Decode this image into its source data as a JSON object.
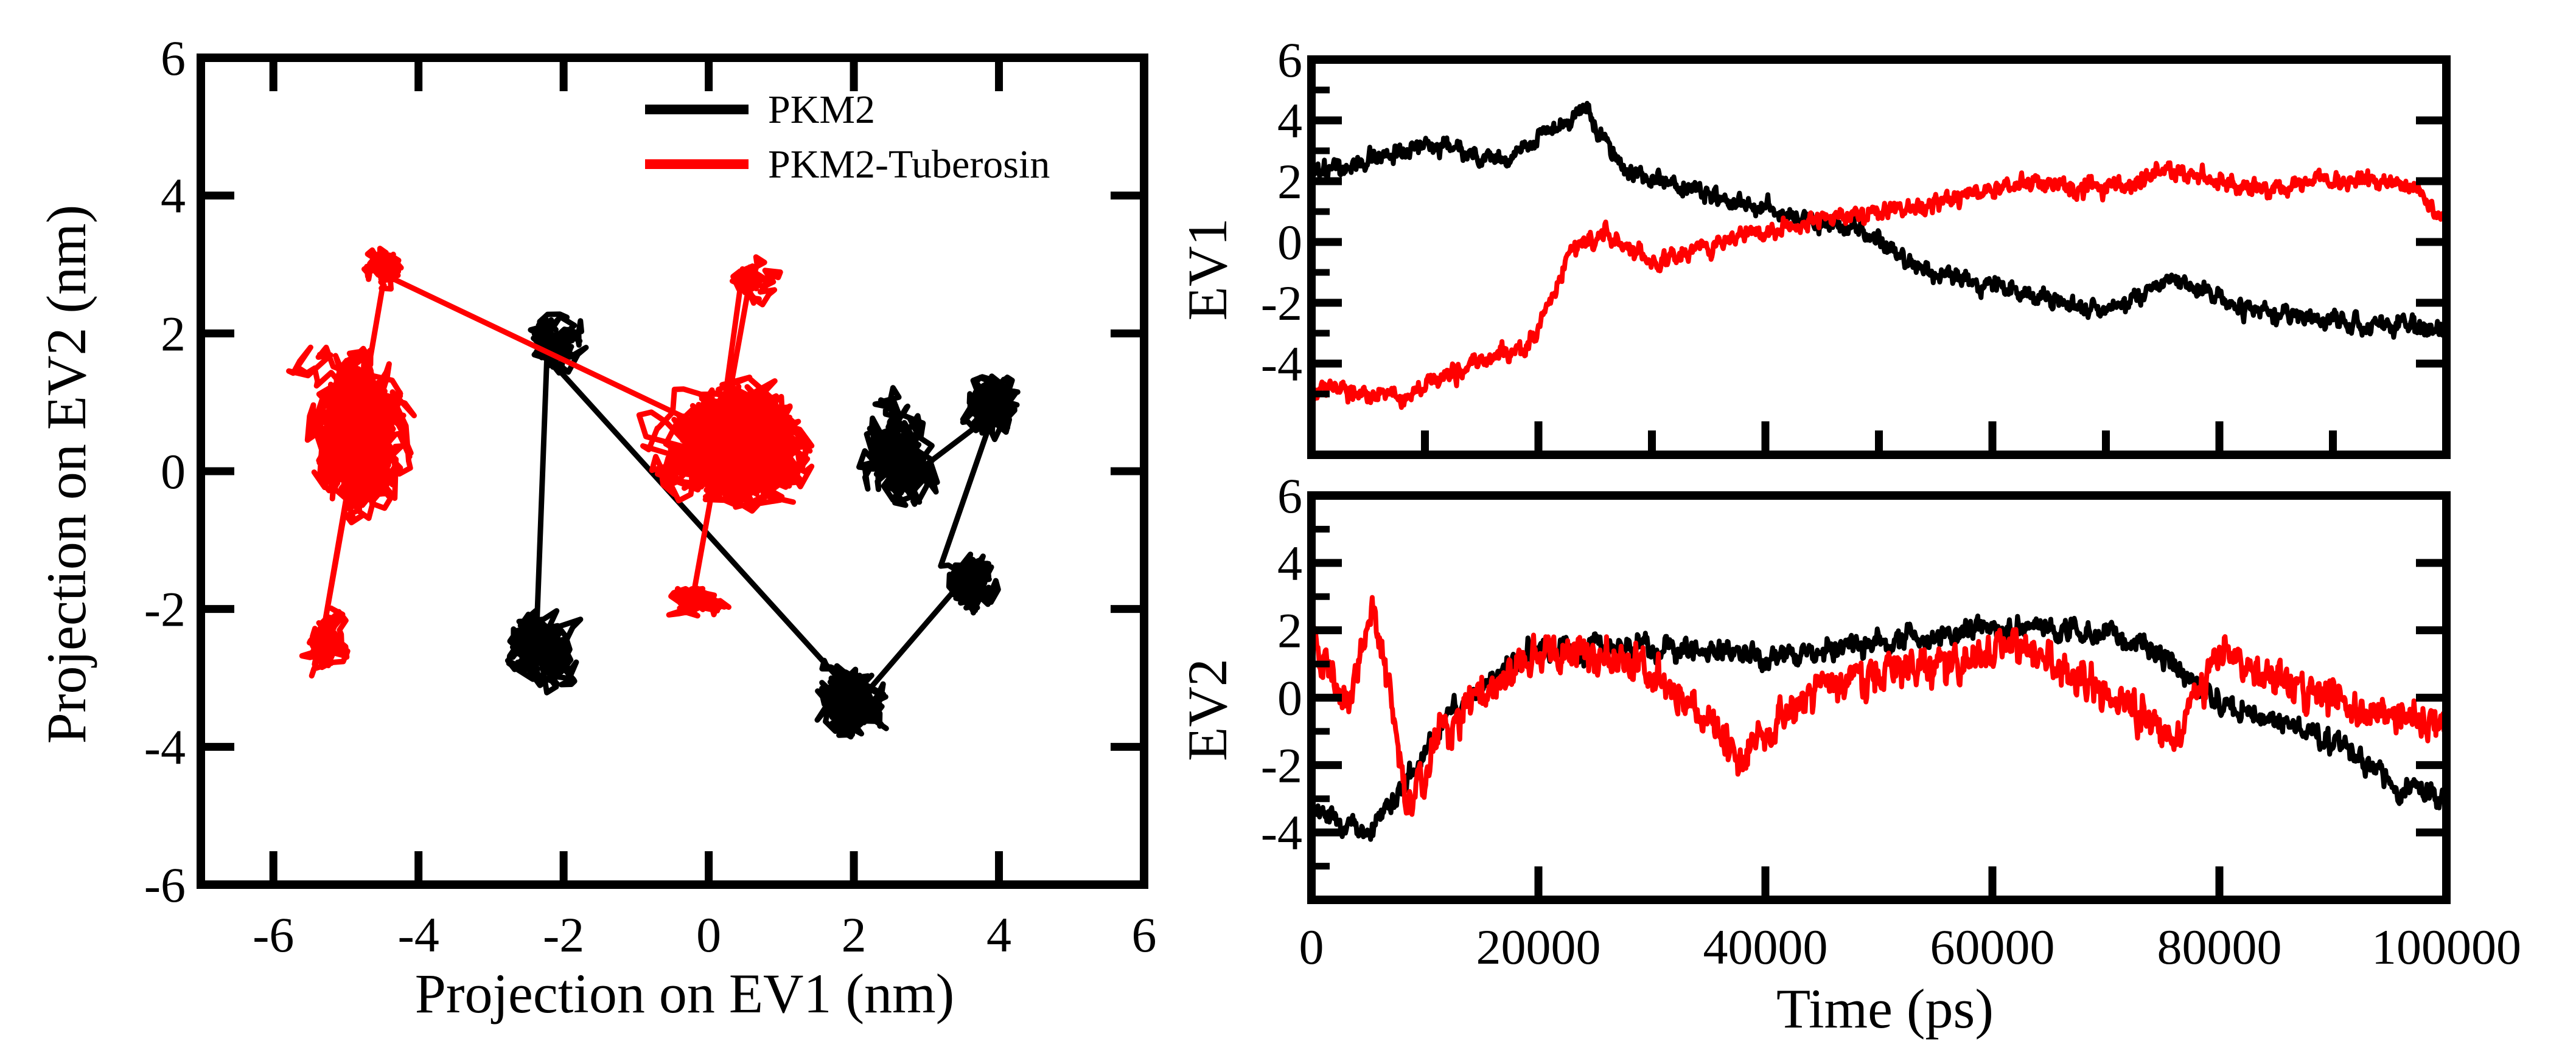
{
  "chart_data": [
    {
      "id": "scatter",
      "type": "line",
      "title": "",
      "xlabel": "Projection on EV1 (nm)",
      "ylabel": "Projection on EV2 (nm)",
      "xlim": [
        -7,
        6
      ],
      "ylim": [
        -6,
        6
      ],
      "xticks": [
        -6,
        -4,
        -2,
        0,
        2,
        4,
        6
      ],
      "yticks": [
        -6,
        -4,
        -2,
        0,
        2,
        4,
        6
      ],
      "legend_position": "top-right",
      "series": [
        {
          "name": "PKM2",
          "color": "#000000",
          "clusters": [
            {
              "center": [
                -2.3,
                -2.6
              ],
              "spread": [
                0.5,
                0.55
              ],
              "points": 320
            },
            {
              "center": [
                -2.1,
                1.9
              ],
              "spread": [
                0.45,
                0.5
              ],
              "points": 160
            },
            {
              "center": [
                2.0,
                -3.3
              ],
              "spread": [
                0.55,
                0.6
              ],
              "points": 420
            },
            {
              "center": [
                3.6,
                -1.6
              ],
              "spread": [
                0.45,
                0.55
              ],
              "points": 200
            },
            {
              "center": [
                3.9,
                1.0
              ],
              "spread": [
                0.5,
                0.55
              ],
              "points": 240
            },
            {
              "center": [
                2.6,
                0.2
              ],
              "spread": [
                0.6,
                0.8
              ],
              "points": 260
            }
          ]
        },
        {
          "name": "PKM2-Tuberosin",
          "color": "#ff0000",
          "clusters": [
            {
              "center": [
                -4.8,
                0.5
              ],
              "spread": [
                0.75,
                1.3
              ],
              "points": 900
            },
            {
              "center": [
                -5.3,
                -2.5
              ],
              "spread": [
                0.4,
                0.5
              ],
              "points": 160
            },
            {
              "center": [
                -4.5,
                3.0
              ],
              "spread": [
                0.4,
                0.35
              ],
              "points": 90
            },
            {
              "center": [
                0.4,
                0.4
              ],
              "spread": [
                1.05,
                0.95
              ],
              "points": 1300
            },
            {
              "center": [
                0.6,
                2.8
              ],
              "spread": [
                0.4,
                0.35
              ],
              "points": 100
            },
            {
              "center": [
                -0.2,
                -1.9
              ],
              "spread": [
                0.5,
                0.3
              ],
              "points": 120
            }
          ]
        }
      ]
    },
    {
      "id": "ev1",
      "type": "line",
      "title": "",
      "xlabel": "",
      "ylabel": "EV1",
      "xlim": [
        0,
        100000
      ],
      "ylim": [
        -7,
        6
      ],
      "yticks": [
        -4,
        -2,
        0,
        2,
        4,
        6
      ],
      "xticks": [
        0,
        10000,
        20000,
        30000,
        40000,
        50000,
        60000,
        70000,
        80000,
        90000,
        100000
      ],
      "series": [
        {
          "name": "PKM2",
          "color": "#000000",
          "trend": [
            [
              0,
              2.2
            ],
            [
              10000,
              3.2
            ],
            [
              17000,
              2.7
            ],
            [
              24000,
              4.3
            ],
            [
              28000,
              2.3
            ],
            [
              40000,
              1.0
            ],
            [
              48000,
              0.4
            ],
            [
              55000,
              -1.1
            ],
            [
              62000,
              -1.6
            ],
            [
              70000,
              -2.3
            ],
            [
              76000,
              -1.2
            ],
            [
              82000,
              -2.2
            ],
            [
              90000,
              -2.6
            ],
            [
              100000,
              -2.9
            ]
          ],
          "noise": 0.45
        },
        {
          "name": "PKM2-Tuberosin",
          "color": "#ff0000",
          "trend": [
            [
              0,
              -4.8
            ],
            [
              8000,
              -5.1
            ],
            [
              15000,
              -3.9
            ],
            [
              19000,
              -3.5
            ],
            [
              23000,
              -0.3
            ],
            [
              26000,
              0.3
            ],
            [
              30000,
              -0.7
            ],
            [
              38000,
              0.2
            ],
            [
              45000,
              0.8
            ],
            [
              50000,
              0.9
            ],
            [
              55000,
              1.3
            ],
            [
              62000,
              1.9
            ],
            [
              70000,
              1.8
            ],
            [
              76000,
              2.4
            ],
            [
              82000,
              1.7
            ],
            [
              90000,
              2.0
            ],
            [
              96000,
              2.0
            ],
            [
              100000,
              0.8
            ]
          ],
          "noise": 0.45
        }
      ]
    },
    {
      "id": "ev2",
      "type": "line",
      "title": "",
      "xlabel": "Time (ps)",
      "ylabel": "EV2",
      "xlim": [
        0,
        100000
      ],
      "ylim": [
        -6,
        6
      ],
      "yticks": [
        -4,
        -2,
        0,
        2,
        4,
        6
      ],
      "xticks": [
        0,
        20000,
        40000,
        60000,
        80000,
        100000
      ],
      "xtick_labels": [
        "0",
        "20000",
        "40000",
        "60000",
        "80000",
        "100000"
      ],
      "series": [
        {
          "name": "PKM2",
          "color": "#000000",
          "trend": [
            [
              0,
              -3.3
            ],
            [
              5000,
              -4.0
            ],
            [
              8000,
              -2.6
            ],
            [
              12000,
              -0.5
            ],
            [
              20000,
              1.5
            ],
            [
              30000,
              1.5
            ],
            [
              40000,
              1.2
            ],
            [
              50000,
              1.6
            ],
            [
              60000,
              2.1
            ],
            [
              70000,
              1.9
            ],
            [
              74000,
              1.5
            ],
            [
              80000,
              -0.2
            ],
            [
              90000,
              -1.2
            ],
            [
              96000,
              -2.7
            ],
            [
              100000,
              -2.8
            ]
          ],
          "noise": 0.5
        },
        {
          "name": "PKM2-Tuberosin",
          "color": "#ff0000",
          "trend": [
            [
              0,
              2.0
            ],
            [
              3000,
              -0.5
            ],
            [
              5500,
              2.8
            ],
            [
              8500,
              -3.2
            ],
            [
              12000,
              -0.8
            ],
            [
              20000,
              1.3
            ],
            [
              30000,
              0.8
            ],
            [
              38000,
              -1.6
            ],
            [
              45000,
              0.5
            ],
            [
              55000,
              0.9
            ],
            [
              62000,
              1.6
            ],
            [
              66000,
              0.9
            ],
            [
              72000,
              -0.4
            ],
            [
              76000,
              -1.3
            ],
            [
              80000,
              1.4
            ],
            [
              86000,
              0.4
            ],
            [
              92000,
              -0.4
            ],
            [
              100000,
              -0.9
            ]
          ],
          "noise": 0.85
        }
      ]
    }
  ]
}
